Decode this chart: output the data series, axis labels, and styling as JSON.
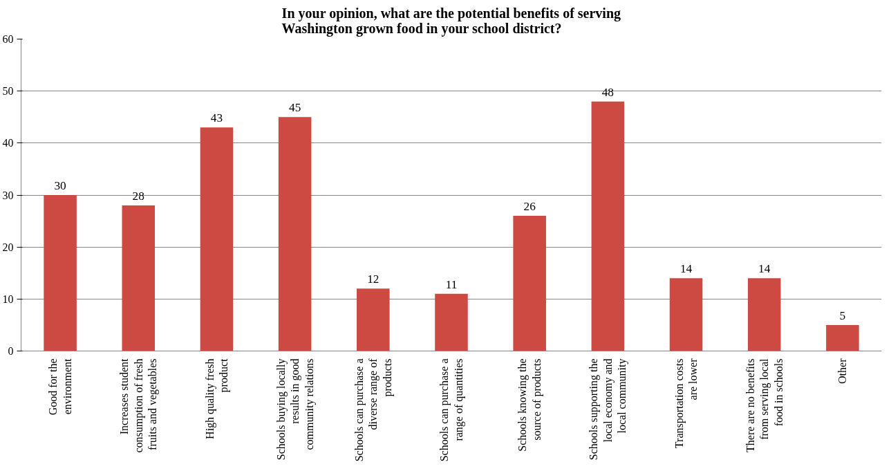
{
  "chart_data": {
    "type": "bar",
    "title": "In your opinion, what are the potential benefits of serving Washington grown food in your school district?",
    "categories": [
      "Good for the environment",
      "Increases student consumption of fresh fruits and vegetables",
      "High quality fresh product",
      "Schools buying locally results in good community relations",
      "Schools can purchase a diverse range of products",
      "Schools can purchase a range of quantities",
      "Schools knowing the source of products",
      "Schools supporting the local economy and local community",
      "Transportation costs are lower",
      "There are no benefits from serving local food in schools",
      "Other"
    ],
    "values": [
      30,
      28,
      43,
      45,
      12,
      11,
      26,
      48,
      14,
      14,
      5
    ],
    "color": "#cc4a42",
    "ylim": [
      0,
      60
    ],
    "yticks": [
      0,
      10,
      20,
      30,
      40,
      50,
      60
    ],
    "grid": "y",
    "data_labels": true
  }
}
